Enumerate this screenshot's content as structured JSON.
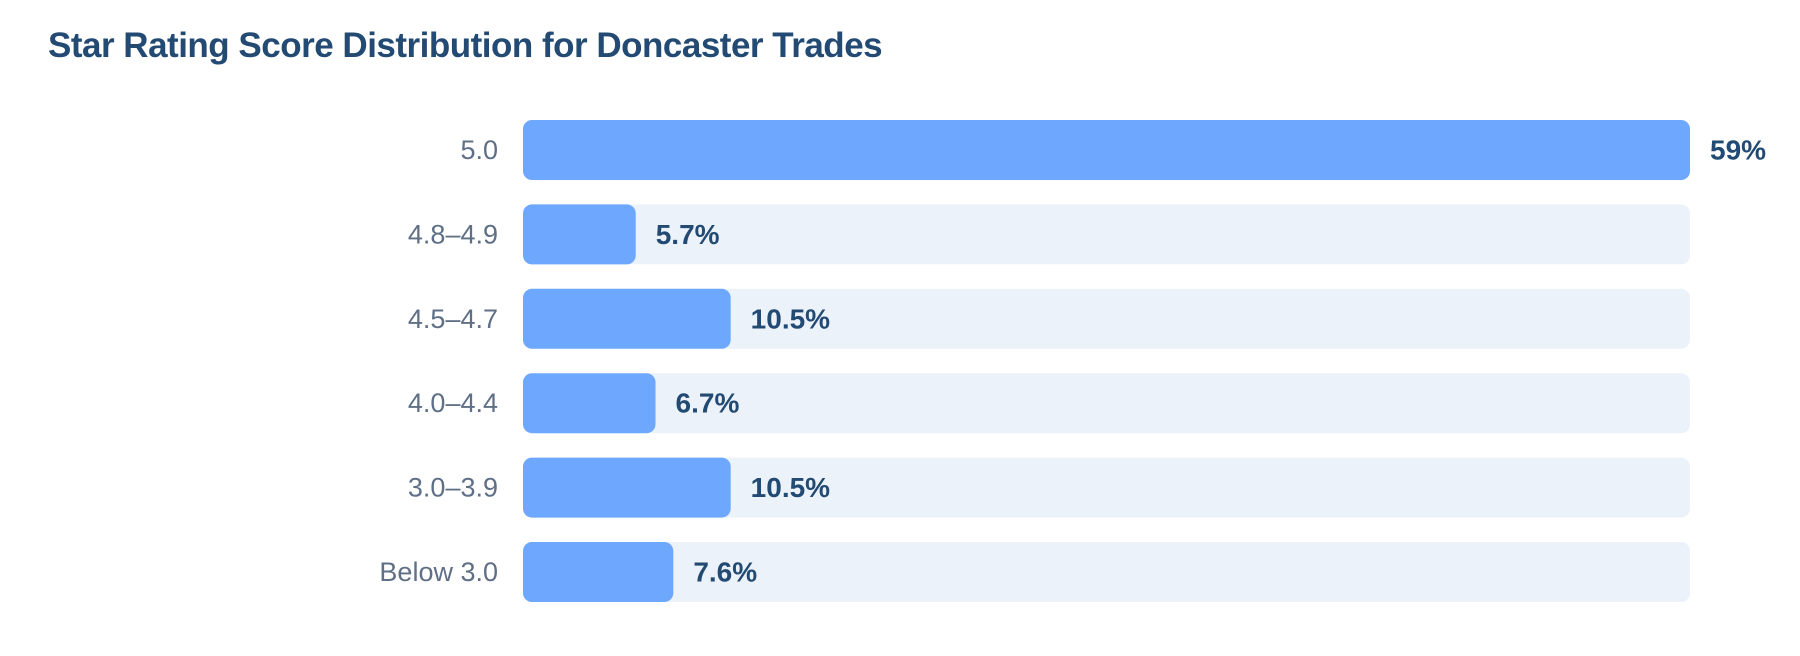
{
  "title": "Star Rating Score Distribution for Doncaster Trades",
  "colors": {
    "title": "#234a73",
    "bar": "#6ea8fe",
    "track": "#ecf2fa",
    "category_text": "#5f6f86",
    "value_text": "#234a73"
  },
  "chart_data": {
    "type": "bar",
    "orientation": "horizontal",
    "title": "Star Rating Score Distribution for Doncaster Trades",
    "categories": [
      "5.0",
      "4.8–4.9",
      "4.5–4.7",
      "4.0–4.4",
      "3.0–3.9",
      "Below 3.0"
    ],
    "values": [
      59,
      5.7,
      10.5,
      6.7,
      10.5,
      7.6
    ],
    "value_labels": [
      "59%",
      "5.7%",
      "10.5%",
      "6.7%",
      "10.5%",
      "7.6%"
    ],
    "unit": "%",
    "xlim": [
      0,
      59
    ],
    "xlabel": "",
    "ylabel": "",
    "grid": false,
    "legend": "none"
  }
}
